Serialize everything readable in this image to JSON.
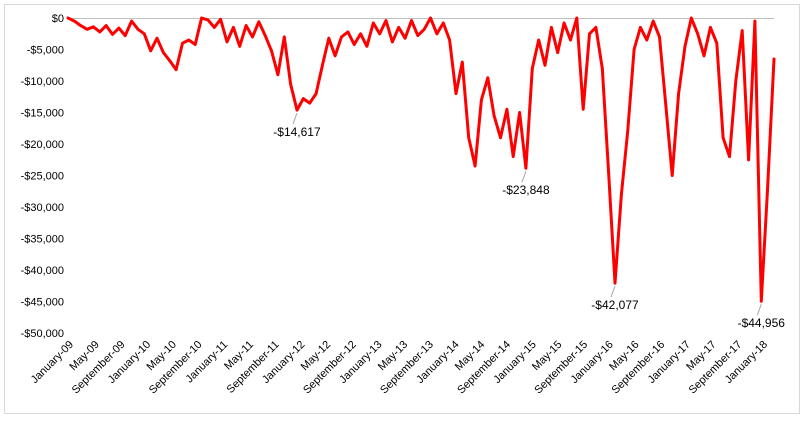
{
  "chart_data": {
    "type": "area",
    "title": "",
    "xlabel": "",
    "ylabel": "",
    "ylim": [
      -50000,
      0
    ],
    "y_ticks": [
      0,
      -5000,
      -10000,
      -15000,
      -20000,
      -25000,
      -30000,
      -35000,
      -40000,
      -45000,
      -50000
    ],
    "y_tick_labels": [
      "$0",
      "-$5,000",
      "-$10,000",
      "-$15,000",
      "-$20,000",
      "-$25,000",
      "-$30,000",
      "-$35,000",
      "-$40,000",
      "-$45,000",
      "-$50,000"
    ],
    "x_range": [
      "2009-01",
      "2018-04"
    ],
    "x_tick_labels": [
      "January-09",
      "May-09",
      "September-09",
      "January-10",
      "May-10",
      "September-10",
      "January-11",
      "May-11",
      "September-11",
      "January-12",
      "May-12",
      "September-12",
      "January-13",
      "May-13",
      "September-13",
      "January-14",
      "May-14",
      "September-14",
      "January-15",
      "May-15",
      "September-15",
      "January-16",
      "May-16",
      "September-16",
      "January-17",
      "May-17",
      "September-17",
      "January-18"
    ],
    "grid": false,
    "legend": "none",
    "series": [
      {
        "color": "#ff0000",
        "points": [
          [
            "2009-01",
            0
          ],
          [
            "2009-02",
            -500
          ],
          [
            "2009-03",
            -1200
          ],
          [
            "2009-04",
            -1800
          ],
          [
            "2009-05",
            -1400
          ],
          [
            "2009-06",
            -2200
          ],
          [
            "2009-07",
            -1200
          ],
          [
            "2009-08",
            -2600
          ],
          [
            "2009-09",
            -1600
          ],
          [
            "2009-10",
            -2800
          ],
          [
            "2009-11",
            -500
          ],
          [
            "2009-12",
            -1800
          ],
          [
            "2010-01",
            -2500
          ],
          [
            "2010-02",
            -5200
          ],
          [
            "2010-03",
            -3200
          ],
          [
            "2010-04",
            -5500
          ],
          [
            "2010-05",
            -6800
          ],
          [
            "2010-06",
            -8200
          ],
          [
            "2010-07",
            -4000
          ],
          [
            "2010-08",
            -3500
          ],
          [
            "2010-09",
            -4200
          ],
          [
            "2010-10",
            0
          ],
          [
            "2010-11",
            -300
          ],
          [
            "2010-12",
            -1500
          ],
          [
            "2011-01",
            -200
          ],
          [
            "2011-02",
            -3800
          ],
          [
            "2011-03",
            -1500
          ],
          [
            "2011-04",
            -4500
          ],
          [
            "2011-05",
            -1200
          ],
          [
            "2011-06",
            -3000
          ],
          [
            "2011-07",
            -600
          ],
          [
            "2011-08",
            -2800
          ],
          [
            "2011-09",
            -5200
          ],
          [
            "2011-10",
            -9000
          ],
          [
            "2011-11",
            -3000
          ],
          [
            "2011-12",
            -10500
          ],
          [
            "2012-01",
            -14617
          ],
          [
            "2012-02",
            -12800
          ],
          [
            "2012-03",
            -13500
          ],
          [
            "2012-04",
            -12000
          ],
          [
            "2012-05",
            -7500
          ],
          [
            "2012-06",
            -3200
          ],
          [
            "2012-07",
            -6000
          ],
          [
            "2012-08",
            -3000
          ],
          [
            "2012-09",
            -2200
          ],
          [
            "2012-10",
            -4200
          ],
          [
            "2012-11",
            -2500
          ],
          [
            "2012-12",
            -4500
          ],
          [
            "2013-01",
            -800
          ],
          [
            "2013-02",
            -2500
          ],
          [
            "2013-03",
            -400
          ],
          [
            "2013-04",
            -3800
          ],
          [
            "2013-05",
            -1500
          ],
          [
            "2013-06",
            -3200
          ],
          [
            "2013-07",
            -400
          ],
          [
            "2013-08",
            -2800
          ],
          [
            "2013-09",
            -1800
          ],
          [
            "2013-10",
            0
          ],
          [
            "2013-11",
            -2500
          ],
          [
            "2013-12",
            -800
          ],
          [
            "2014-01",
            -3500
          ],
          [
            "2014-02",
            -12000
          ],
          [
            "2014-03",
            -7000
          ],
          [
            "2014-04",
            -19000
          ],
          [
            "2014-05",
            -23500
          ],
          [
            "2014-06",
            -13000
          ],
          [
            "2014-07",
            -9500
          ],
          [
            "2014-08",
            -15500
          ],
          [
            "2014-09",
            -19000
          ],
          [
            "2014-10",
            -14500
          ],
          [
            "2014-11",
            -22000
          ],
          [
            "2014-12",
            -15000
          ],
          [
            "2015-01",
            -23848
          ],
          [
            "2015-02",
            -8000
          ],
          [
            "2015-03",
            -3500
          ],
          [
            "2015-04",
            -7500
          ],
          [
            "2015-05",
            -1500
          ],
          [
            "2015-06",
            -5500
          ],
          [
            "2015-07",
            -800
          ],
          [
            "2015-08",
            -3500
          ],
          [
            "2015-09",
            0
          ],
          [
            "2015-10",
            -14500
          ],
          [
            "2015-11",
            -2500
          ],
          [
            "2015-12",
            -1500
          ],
          [
            "2016-01",
            -8000
          ],
          [
            "2016-02",
            -24500
          ],
          [
            "2016-03",
            -42077
          ],
          [
            "2016-04",
            -28000
          ],
          [
            "2016-05",
            -18000
          ],
          [
            "2016-06",
            -5000
          ],
          [
            "2016-07",
            -1500
          ],
          [
            "2016-08",
            -3500
          ],
          [
            "2016-09",
            -500
          ],
          [
            "2016-10",
            -3000
          ],
          [
            "2016-11",
            -14000
          ],
          [
            "2016-12",
            -25000
          ],
          [
            "2017-01",
            -12000
          ],
          [
            "2017-02",
            -4500
          ],
          [
            "2017-03",
            0
          ],
          [
            "2017-04",
            -2500
          ],
          [
            "2017-05",
            -6000
          ],
          [
            "2017-06",
            -1500
          ],
          [
            "2017-07",
            -4000
          ],
          [
            "2017-08",
            -19000
          ],
          [
            "2017-09",
            -22000
          ],
          [
            "2017-10",
            -10000
          ],
          [
            "2017-11",
            -2000
          ],
          [
            "2017-12",
            -22500
          ],
          [
            "2018-01",
            -500
          ],
          [
            "2018-02",
            -44956
          ],
          [
            "2018-03",
            -27000
          ],
          [
            "2018-04",
            -6500
          ]
        ]
      }
    ],
    "annotations": [
      {
        "x": "2012-01",
        "y": -14617,
        "label": "-$14,617"
      },
      {
        "x": "2015-01",
        "y": -23848,
        "label": "-$23,848"
      },
      {
        "x": "2016-03",
        "y": -42077,
        "label": "-$42,077"
      },
      {
        "x": "2018-02",
        "y": -44956,
        "label": "-$44,956"
      }
    ]
  }
}
